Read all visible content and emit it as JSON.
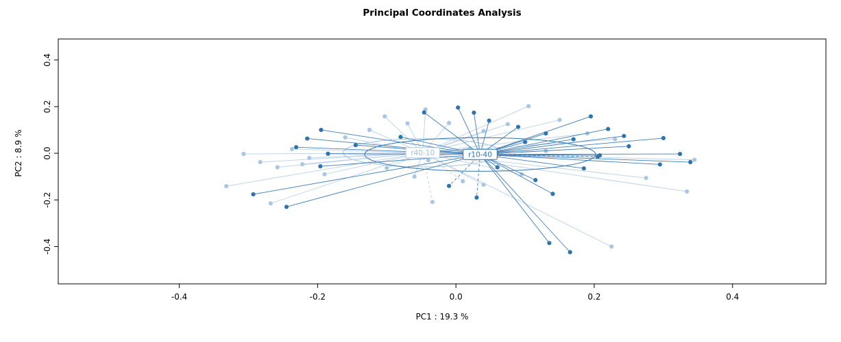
{
  "chart_data": {
    "type": "scatter",
    "title": "Principal Coordinates Analysis",
    "xlabel": "PC1 :  19.3 %",
    "ylabel": "PC2 :  8.9 %",
    "xlim": [
      -0.575,
      0.535
    ],
    "ylim": [
      -0.56,
      0.49
    ],
    "grid": false,
    "xticks": {
      "values": [
        -0.4,
        -0.2,
        0.0,
        0.2,
        0.4
      ],
      "labels": [
        "-0.4",
        "-0.2",
        "0.0",
        "0.2",
        "0.4"
      ]
    },
    "yticks": {
      "values": [
        -0.4,
        -0.2,
        0.0,
        0.2,
        0.4
      ],
      "labels": [
        "-0.4",
        "-0.2",
        "0.0",
        "0.2",
        "0.4"
      ]
    },
    "groups": [
      {
        "name": "r40-10",
        "color": "#a9c6e4",
        "line_color": "#b9d0ea",
        "label_color": "#9fbcdd",
        "centroid": [
          -0.048,
          0.002
        ],
        "ellipse": {
          "rx": 0.115,
          "ry": 0.06
        },
        "points": [
          [
            -0.332,
            -0.141
          ],
          [
            -0.307,
            -0.003
          ],
          [
            -0.283,
            -0.038
          ],
          [
            -0.268,
            -0.215
          ],
          [
            -0.258,
            -0.06
          ],
          [
            -0.237,
            0.018
          ],
          [
            -0.222,
            -0.047
          ],
          [
            -0.212,
            -0.02
          ],
          [
            -0.19,
            -0.09
          ],
          [
            -0.16,
            0.068
          ],
          [
            -0.125,
            0.1
          ],
          [
            -0.103,
            0.158
          ],
          [
            -0.07,
            0.128
          ],
          [
            -0.044,
            0.188
          ],
          [
            -0.01,
            0.13
          ],
          [
            0.04,
            0.095
          ],
          [
            0.075,
            0.125
          ],
          [
            0.105,
            0.202
          ],
          [
            0.15,
            0.143
          ],
          [
            0.19,
            0.085
          ],
          [
            0.23,
            0.06
          ],
          [
            0.275,
            -0.106
          ],
          [
            0.345,
            -0.028
          ],
          [
            0.334,
            -0.164
          ],
          [
            0.225,
            -0.4
          ],
          [
            0.095,
            -0.09
          ],
          [
            0.04,
            -0.135
          ],
          [
            -0.06,
            -0.1
          ],
          [
            -0.1,
            -0.063
          ],
          [
            0.02,
            0.02
          ],
          [
            0.13,
            0.01
          ],
          [
            -0.04,
            -0.03
          ]
        ],
        "dashed_points": [
          [
            -0.034,
            -0.209
          ],
          [
            0.01,
            -0.12
          ]
        ]
      },
      {
        "name": "r10-40",
        "color": "#2e74ae",
        "line_color": "#3d7db8",
        "label_color": "#2e74ae",
        "centroid": [
          0.035,
          -0.005
        ],
        "ellipse": {
          "rx": 0.167,
          "ry": 0.072
        },
        "points": [
          [
            0.003,
            0.196
          ],
          [
            0.026,
            0.174
          ],
          [
            -0.046,
            0.175
          ],
          [
            0.048,
            0.14
          ],
          [
            0.09,
            0.113
          ],
          [
            0.195,
            0.158
          ],
          [
            0.22,
            0.104
          ],
          [
            0.243,
            0.074
          ],
          [
            0.17,
            0.06
          ],
          [
            0.13,
            0.085
          ],
          [
            -0.08,
            0.07
          ],
          [
            -0.145,
            0.035
          ],
          [
            -0.185,
            -0.002
          ],
          [
            -0.196,
            -0.056
          ],
          [
            -0.215,
            0.063
          ],
          [
            -0.231,
            0.026
          ],
          [
            -0.195,
            0.1
          ],
          [
            -0.293,
            -0.176
          ],
          [
            -0.245,
            -0.23
          ],
          [
            0.324,
            -0.003
          ],
          [
            0.339,
            -0.038
          ],
          [
            0.295,
            -0.048
          ],
          [
            0.208,
            -0.009
          ],
          [
            0.185,
            -0.065
          ],
          [
            0.14,
            -0.174
          ],
          [
            0.115,
            -0.115
          ],
          [
            0.135,
            -0.385
          ],
          [
            0.165,
            -0.424
          ],
          [
            0.1,
            0.048
          ],
          [
            0.06,
            -0.06
          ],
          [
            0.25,
            0.03
          ],
          [
            0.3,
            0.065
          ]
        ],
        "dashed_points": [
          [
            0.03,
            -0.19
          ],
          [
            -0.01,
            -0.14
          ],
          [
            0.205,
            -0.015
          ]
        ]
      }
    ]
  }
}
